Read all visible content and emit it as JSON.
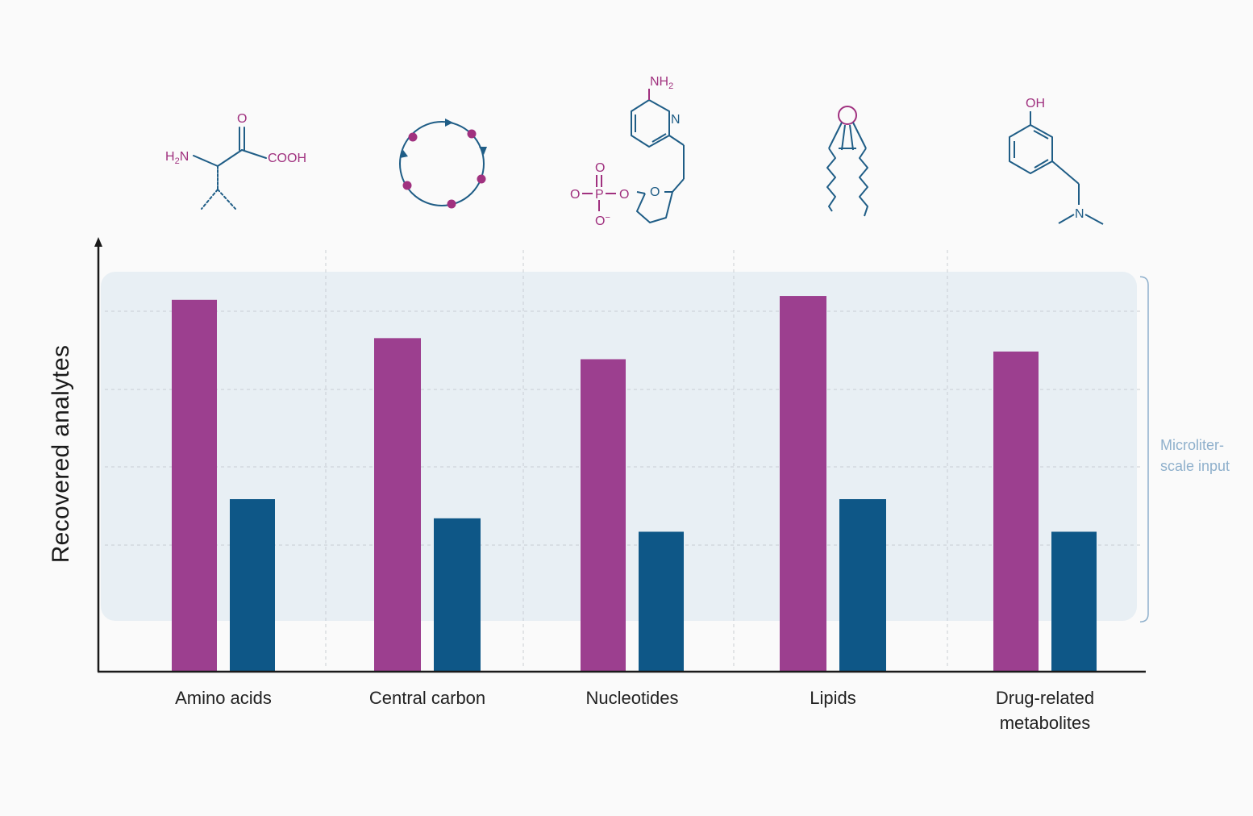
{
  "colors": {
    "series_a": "#9c3f8f",
    "series_b": "#0e5787",
    "band": "#e8eff4",
    "grid": "#c9ced3",
    "axis": "#1a1a1a",
    "annotation": "#8fb0cc",
    "chem_magenta": "#a0317f",
    "chem_blue": "#1f5d86"
  },
  "chart_data": {
    "type": "bar",
    "title": "",
    "ylabel": "Recovered analytes",
    "xlabel": "",
    "categories": [
      [
        "Amino acids"
      ],
      [
        "Central carbon"
      ],
      [
        "Nucleotides"
      ],
      [
        "Lipids"
      ],
      [
        "Drug-related",
        "metabolites"
      ]
    ],
    "series": [
      {
        "values": [
          97,
          87,
          81.5,
          98,
          83.5
        ]
      },
      {
        "values": [
          45,
          40,
          36.5,
          45,
          36.5
        ]
      }
    ],
    "ylim": [
      0,
      110
    ],
    "y_ticks_labeled": false,
    "grid": "dashed, both axes",
    "legend": "none",
    "annotation": {
      "lines": [
        "Microliter-",
        "scale input"
      ],
      "band_range": [
        13,
        103
      ]
    }
  },
  "structures": {
    "amino_acid": {
      "amine": "H",
      "amine_sub": "2",
      "amine_n": "N",
      "carbonyl_o": "O",
      "acid": "COOH"
    },
    "nucleotide": {
      "amine": "NH",
      "amine_sub": "2",
      "ring_n": "N",
      "ring_o": "O",
      "phosphorus": "P",
      "phos_o_top": "O",
      "phos_o_left": "O",
      "phos_o_right": "O",
      "phos_o_bottom": "O",
      "phos_charge": "−"
    },
    "drug": {
      "hydroxyl": "OH",
      "amine_n": "N"
    }
  }
}
